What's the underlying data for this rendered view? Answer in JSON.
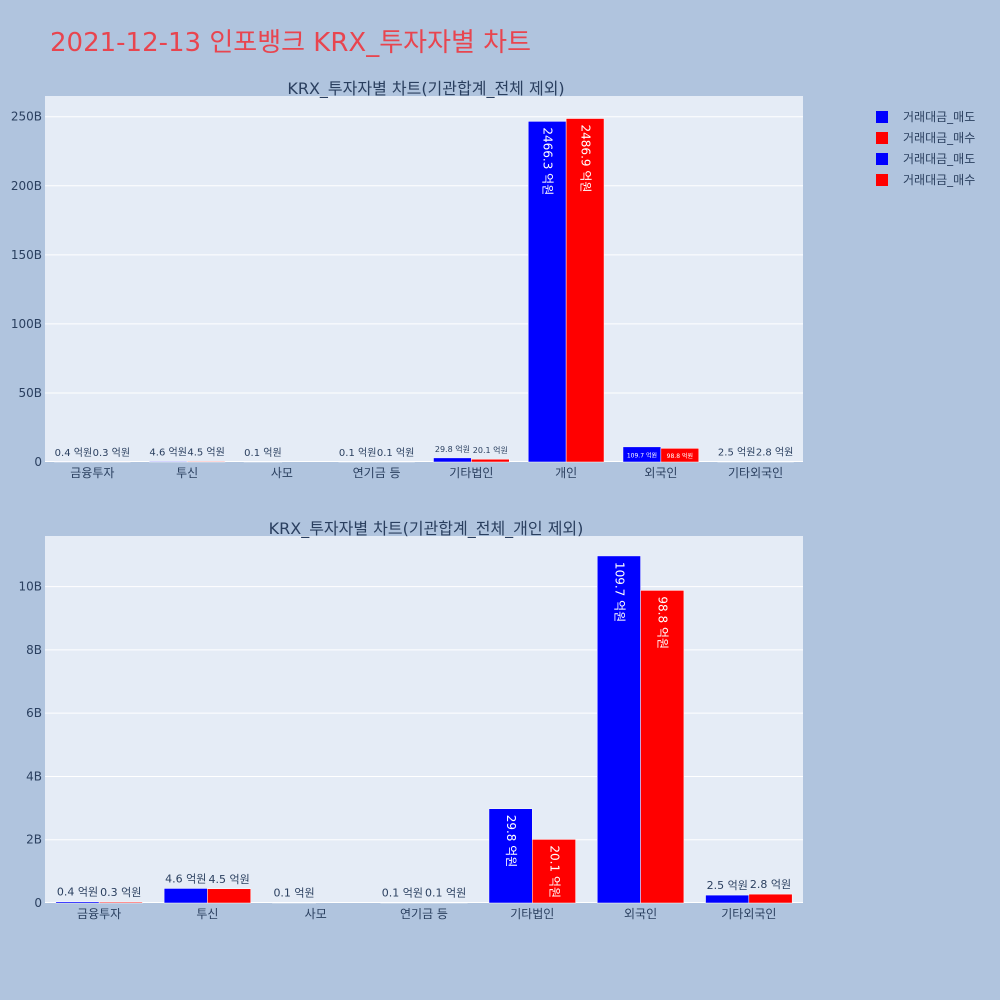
{
  "page": {
    "title": "2021-12-13 인포뱅크 KRX_투자자별 차트"
  },
  "colors": {
    "sell": "#0000ff",
    "buy": "#ff0000",
    "plot_bg": "#e5ecf6",
    "grid": "#ffffff",
    "text": "#2a3f5f"
  },
  "legend": [
    {
      "label": "거래대금_매도",
      "color": "#0000ff"
    },
    {
      "label": "거래대금_매수",
      "color": "#ff0000"
    },
    {
      "label": "거래대금_매도",
      "color": "#0000ff"
    },
    {
      "label": "거래대금_매수",
      "color": "#ff0000"
    }
  ],
  "chart_data": [
    {
      "type": "bar",
      "title": "KRX_투자자별 차트(기관합계_전체 제외)",
      "categories": [
        "금융투자",
        "투신",
        "사모",
        "연기금 등",
        "기타법인",
        "개인",
        "외국인",
        "기타외국인"
      ],
      "series": [
        {
          "name": "거래대금_매도",
          "values": [
            0.04,
            0.46,
            0.01,
            0.01,
            2.98,
            246.63,
            10.97,
            0.25
          ],
          "labels": [
            "0.4 억원",
            "4.6 억원",
            "0.1 억원",
            "0.1 억원",
            "29.8 억원",
            "2466.3 억원",
            "109.7 억원",
            "2.5 억원"
          ]
        },
        {
          "name": "거래대금_매수",
          "values": [
            0.03,
            0.45,
            0,
            0.01,
            2.01,
            248.69,
            9.88,
            0.28
          ],
          "labels": [
            "0.3 억원",
            "4.5 억원",
            "",
            "0.1 억원",
            "20.1 억원",
            "2486.9 억원",
            "98.8 억원",
            "2.8 억원"
          ]
        }
      ],
      "y_ticks": [
        "0",
        "50B",
        "100B",
        "150B",
        "200B",
        "250B"
      ],
      "ylim": [
        0,
        265
      ],
      "grid": true
    },
    {
      "type": "bar",
      "title": "KRX_투자자별 차트(기관합계_전체_개인 제외)",
      "categories": [
        "금융투자",
        "투신",
        "사모",
        "연기금 등",
        "기타법인",
        "외국인",
        "기타외국인"
      ],
      "series": [
        {
          "name": "거래대금_매도",
          "values": [
            0.04,
            0.46,
            0.01,
            0.01,
            2.98,
            10.97,
            0.25
          ],
          "labels": [
            "0.4 억원",
            "4.6 억원",
            "0.1 억원",
            "0.1 억원",
            "29.8 억원",
            "109.7 억원",
            "2.5 억원"
          ]
        },
        {
          "name": "거래대금_매수",
          "values": [
            0.03,
            0.45,
            0,
            0.01,
            2.01,
            9.88,
            0.28
          ],
          "labels": [
            "0.3 억원",
            "4.5 억원",
            "",
            "0.1 억원",
            "20.1 억원",
            "98.8 억원",
            "2.8 억원"
          ]
        }
      ],
      "y_ticks": [
        "0",
        "2B",
        "4B",
        "6B",
        "8B",
        "10B"
      ],
      "ylim": [
        0,
        11.6
      ],
      "grid": true
    }
  ]
}
